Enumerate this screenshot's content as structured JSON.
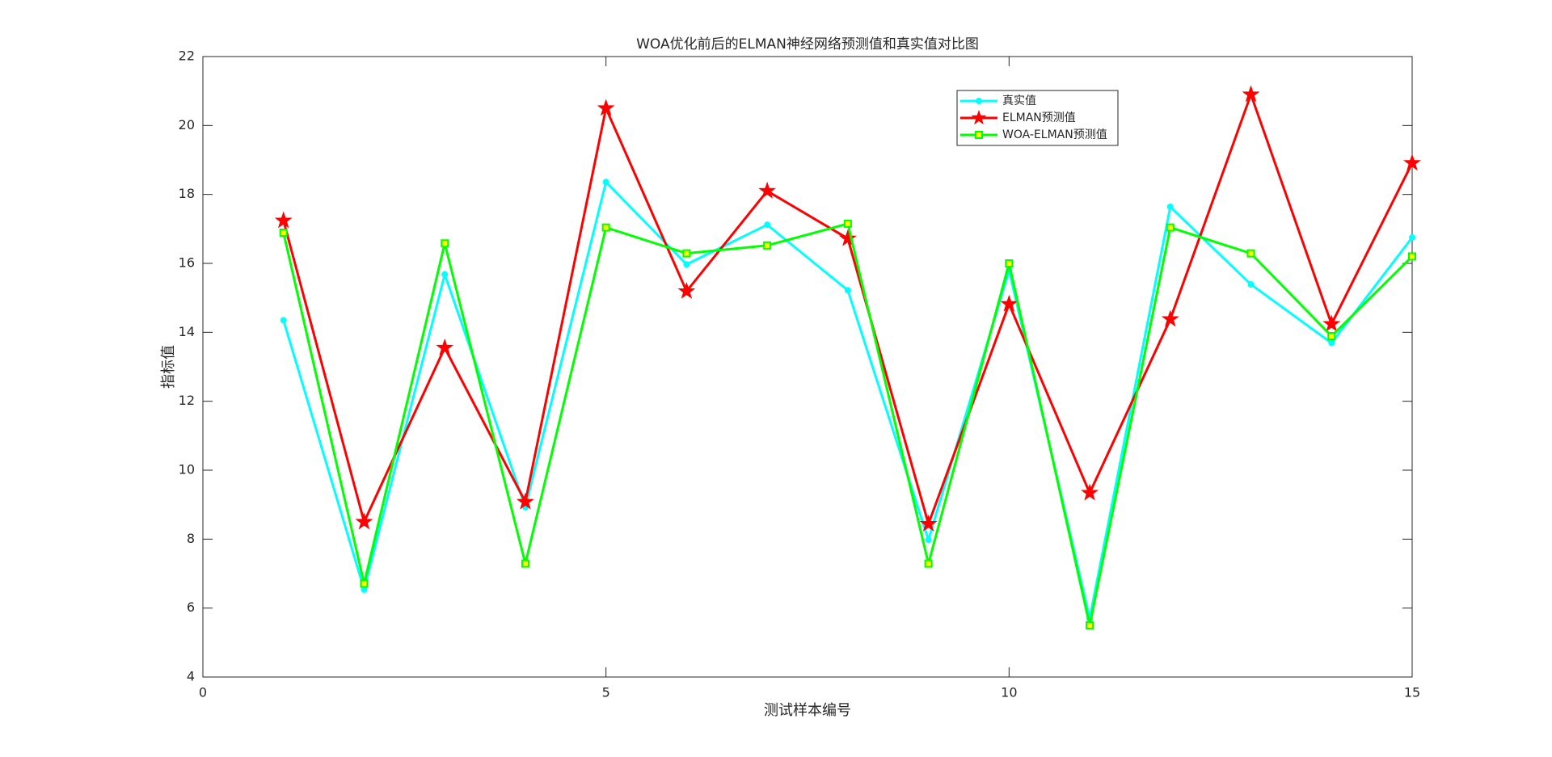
{
  "chart_data": {
    "type": "line",
    "title": "WOA优化前后的ELMAN神经网络预测值和真实值对比图",
    "x_label": "测试样本编号",
    "y_label": "指标值",
    "x": [
      1,
      2,
      3,
      4,
      5,
      6,
      7,
      8,
      9,
      10,
      11,
      12,
      13,
      14,
      15
    ],
    "series": [
      {
        "name": "真实值",
        "color": "#00ffff",
        "marker": "circle",
        "values": [
          14.35,
          6.54,
          15.68,
          8.93,
          18.36,
          15.97,
          17.12,
          15.22,
          7.98,
          15.8,
          5.7,
          17.64,
          15.39,
          13.69,
          16.75
        ]
      },
      {
        "name": "ELMAN预测值",
        "color": "#ff0000",
        "marker": "star",
        "values": [
          17.24,
          8.5,
          13.55,
          9.08,
          20.5,
          15.19,
          18.1,
          16.72,
          8.44,
          14.82,
          9.34,
          14.38,
          20.9,
          14.24,
          18.91
        ]
      },
      {
        "name": "WOA-ELMAN预测值",
        "color": "#00ff00",
        "marker": "square",
        "values": [
          16.89,
          6.71,
          16.58,
          7.29,
          17.04,
          16.29,
          16.52,
          17.15,
          7.29,
          16.0,
          5.5,
          17.04,
          16.29,
          13.89,
          16.2
        ]
      }
    ],
    "xlim": [
      0,
      15
    ],
    "xticks": [
      0,
      5,
      10,
      15
    ],
    "ylim": [
      4,
      22
    ],
    "yticks": [
      4,
      6,
      8,
      10,
      12,
      14,
      16,
      18,
      20,
      22
    ]
  }
}
